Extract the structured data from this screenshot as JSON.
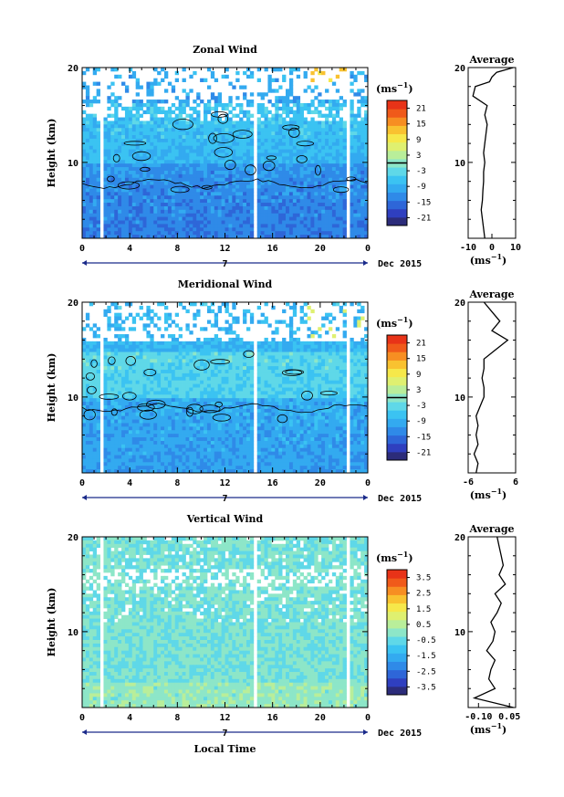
{
  "colorbar_colors": [
    "#2c2c7a",
    "#2f3fbf",
    "#2e66d8",
    "#2f8ae8",
    "#33aaf0",
    "#3bc3f2",
    "#5fd8e8",
    "#8de6c8",
    "#b9ee9a",
    "#dff070",
    "#f6e84a",
    "#f9c230",
    "#f78e22",
    "#f05a1a",
    "#e83318"
  ],
  "x_axis_ticks": [
    "0",
    "4",
    "8",
    "12",
    "16",
    "20",
    "0"
  ],
  "date_marker": "7",
  "date_label": "Dec 2015",
  "x_title": "Local Time",
  "height_label": "Height (km)",
  "height_ticks": [
    "20",
    "10"
  ],
  "unit_label": "(ms",
  "unit_sup": "−1",
  "average_title": "Average",
  "chart_data": [
    {
      "type": "heatmap",
      "title": "Zonal Wind",
      "ylabel": "Height (km)",
      "x_ticks": [
        "0",
        "4",
        "8",
        "12",
        "16",
        "20",
        "0"
      ],
      "ylim": [
        2,
        20
      ],
      "colorbar": {
        "ticks": [
          "21",
          "15",
          "9",
          "3",
          "-3",
          "-9",
          "-15",
          "-21"
        ],
        "range": [
          -24,
          24
        ],
        "zero_line": 0
      },
      "profile": {
        "title": "Average",
        "xlim": [
          -10,
          10
        ],
        "xticks": [
          "-10",
          "0",
          "10"
        ],
        "xlabel": "(ms",
        "y": [
          2,
          3,
          4,
          5,
          6,
          7,
          8,
          9,
          10,
          11,
          12,
          13,
          14,
          15,
          16,
          17,
          18,
          18.5,
          19,
          19.5,
          20
        ],
        "x": [
          -3,
          -3.5,
          -4,
          -4.5,
          -4,
          -3.8,
          -3.5,
          -3.5,
          -3,
          -3.5,
          -3,
          -2.5,
          -2,
          -3,
          -2,
          -8,
          -7,
          -1,
          0,
          2,
          9
        ]
      }
    },
    {
      "type": "heatmap",
      "title": "Meridional Wind",
      "ylabel": "Height (km)",
      "x_ticks": [
        "0",
        "4",
        "8",
        "12",
        "16",
        "20",
        "0"
      ],
      "ylim": [
        2,
        20
      ],
      "colorbar": {
        "ticks": [
          "21",
          "15",
          "9",
          "3",
          "-3",
          "-9",
          "-15",
          "-21"
        ],
        "range": [
          -24,
          24
        ],
        "zero_line": 0
      },
      "profile": {
        "title": "Average",
        "xlim": [
          -6,
          6
        ],
        "xticks": [
          "-6",
          "6"
        ],
        "xlabel": "(ms",
        "y": [
          2,
          3,
          4,
          5,
          6,
          7,
          8,
          9,
          10,
          11,
          12,
          13,
          14,
          15,
          16,
          17,
          18,
          19,
          20
        ],
        "x": [
          -4,
          -3.5,
          -4.5,
          -3.5,
          -4,
          -3.5,
          -4,
          -3,
          -2,
          -2,
          -2.5,
          -2,
          -2,
          1,
          4,
          0,
          2,
          0,
          -2
        ]
      }
    },
    {
      "type": "heatmap",
      "title": "Vertical Wind",
      "ylabel": "Height (km)",
      "x_ticks": [
        "0",
        "4",
        "8",
        "12",
        "16",
        "20",
        "0"
      ],
      "xlabel": "Local Time",
      "ylim": [
        2,
        20
      ],
      "colorbar": {
        "ticks": [
          "3.5",
          "2.5",
          "1.5",
          "0.5",
          "-0.5",
          "-1.5",
          "-2.5",
          "-3.5"
        ],
        "range": [
          -4,
          4
        ]
      },
      "profile": {
        "title": "Average",
        "xlim": [
          -0.15,
          0.08
        ],
        "xticks": [
          "-0.10",
          "0.05"
        ],
        "xlabel": "(ms",
        "y": [
          2,
          3,
          4,
          5,
          6,
          7,
          8,
          9,
          10,
          11,
          12,
          13,
          14,
          15,
          16,
          17,
          18,
          19,
          20
        ],
        "x": [
          0.07,
          -0.12,
          -0.02,
          -0.05,
          -0.04,
          -0.02,
          -0.06,
          -0.03,
          -0.02,
          -0.04,
          -0.01,
          0.01,
          -0.02,
          0.03,
          0.0,
          0.02,
          0.01,
          0.0,
          -0.01
        ]
      }
    }
  ]
}
